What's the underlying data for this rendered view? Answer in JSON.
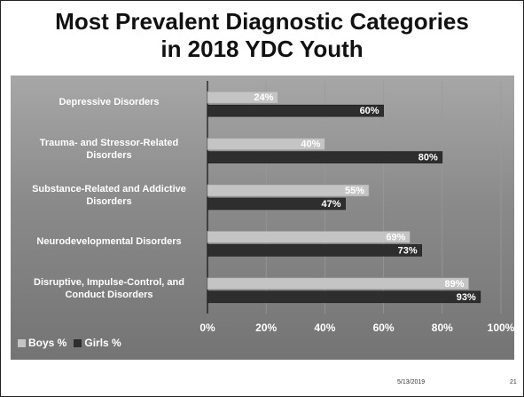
{
  "slide": {
    "title_line1": "Most Prevalent Diagnostic Categories",
    "title_line2": "in 2018 YDC Youth",
    "footer_date": "5/13/2019",
    "footer_page": "21"
  },
  "colors": {
    "boys": "#c4c4c4",
    "girls": "#2e2e2e",
    "label_text": "#ffffff"
  },
  "chart_data": {
    "type": "bar",
    "orientation": "horizontal",
    "title": "Most Prevalent Diagnostic Categories in 2018 YDC Youth",
    "categories": [
      "Depressive Disorders",
      "Trauma- and Stressor-Related Disorders",
      "Substance-Related and Addictive Disorders",
      "Neurodevelopmental Disorders",
      "Disruptive, Impulse-Control, and Conduct Disorders"
    ],
    "category_lines": [
      [
        "Depressive Disorders"
      ],
      [
        "Trauma- and Stressor-Related",
        "Disorders"
      ],
      [
        "Substance-Related and Addictive",
        "Disorders"
      ],
      [
        "Neurodevelopmental Disorders"
      ],
      [
        "Disruptive, Impulse-Control, and",
        "Conduct Disorders"
      ]
    ],
    "series": [
      {
        "name": "Boys %",
        "values": [
          24,
          40,
          55,
          69,
          89
        ],
        "labels": [
          "24%",
          "40%",
          "55%",
          "69%",
          "89%"
        ]
      },
      {
        "name": "Girls %",
        "values": [
          60,
          80,
          47,
          73,
          93
        ],
        "labels": [
          "60%",
          "80%",
          "47%",
          "73%",
          "93%"
        ]
      }
    ],
    "xlim": [
      0,
      100
    ],
    "xticks": [
      0,
      20,
      40,
      60,
      80,
      100
    ],
    "xtick_labels": [
      "0%",
      "20%",
      "40%",
      "60%",
      "80%",
      "100%"
    ],
    "grid": true,
    "legend": "bottom-left"
  }
}
